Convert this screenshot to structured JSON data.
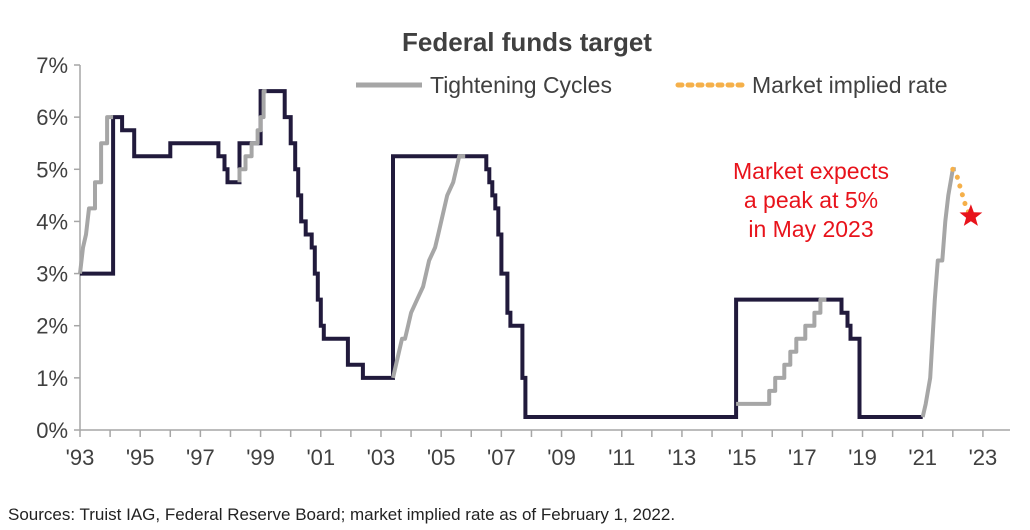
{
  "chart_data": {
    "type": "line",
    "title": "Federal funds target",
    "xlabel": "",
    "ylabel": "",
    "ylim": [
      0,
      7
    ],
    "xlim": [
      1993,
      2023.9
    ],
    "y_ticks": [
      "0%",
      "1%",
      "2%",
      "3%",
      "4%",
      "5%",
      "6%",
      "7%"
    ],
    "x_ticks": [
      {
        "value": 1993,
        "label": "'93"
      },
      {
        "value": 1995,
        "label": "'95"
      },
      {
        "value": 1997,
        "label": "'97"
      },
      {
        "value": 1999,
        "label": "'99"
      },
      {
        "value": 2001,
        "label": "'01"
      },
      {
        "value": 2003,
        "label": "'03"
      },
      {
        "value": 2005,
        "label": "'05"
      },
      {
        "value": 2007,
        "label": "'07"
      },
      {
        "value": 2009,
        "label": "'09"
      },
      {
        "value": 2011,
        "label": "'11"
      },
      {
        "value": 2013,
        "label": "'13"
      },
      {
        "value": 2015,
        "label": "'15"
      },
      {
        "value": 2017,
        "label": "'17"
      },
      {
        "value": 2019,
        "label": "'19"
      },
      {
        "value": 2021,
        "label": "'21"
      },
      {
        "value": 2023,
        "label": "'23"
      }
    ],
    "grid": false,
    "legend": {
      "position": "top-right",
      "entries": [
        {
          "label": "Tightening Cycles",
          "color": "#a6a6a6",
          "style": "solid"
        },
        {
          "label": "Market implied rate",
          "color": "#f5b04a",
          "style": "dotted"
        }
      ]
    },
    "series": [
      {
        "role": "base",
        "color": "#211a3c",
        "points": [
          [
            1993.0,
            3.0
          ],
          [
            1994.1,
            3.0
          ],
          [
            1994.1,
            6.0
          ],
          [
            1994.4,
            6.0
          ],
          [
            1994.4,
            5.75
          ],
          [
            1994.8,
            5.75
          ],
          [
            1994.8,
            5.25
          ],
          [
            1996.0,
            5.25
          ],
          [
            1996.0,
            5.5
          ],
          [
            1997.6,
            5.5
          ],
          [
            1997.6,
            5.25
          ],
          [
            1997.8,
            5.25
          ],
          [
            1997.8,
            5.0
          ],
          [
            1997.9,
            5.0
          ],
          [
            1997.9,
            4.75
          ],
          [
            1998.3,
            4.75
          ],
          [
            1998.3,
            5.5
          ],
          [
            1999.0,
            5.5
          ],
          [
            1999.0,
            6.5
          ],
          [
            1999.8,
            6.5
          ],
          [
            1999.8,
            6.0
          ],
          [
            2000.0,
            6.0
          ],
          [
            2000.0,
            5.5
          ],
          [
            2000.15,
            5.5
          ],
          [
            2000.15,
            5.0
          ],
          [
            2000.25,
            5.0
          ],
          [
            2000.25,
            4.5
          ],
          [
            2000.35,
            4.5
          ],
          [
            2000.35,
            4.0
          ],
          [
            2000.5,
            4.0
          ],
          [
            2000.5,
            3.75
          ],
          [
            2000.7,
            3.75
          ],
          [
            2000.7,
            3.5
          ],
          [
            2000.8,
            3.5
          ],
          [
            2000.8,
            3.0
          ],
          [
            2000.9,
            3.0
          ],
          [
            2000.9,
            2.5
          ],
          [
            2001.0,
            2.5
          ],
          [
            2001.0,
            2.0
          ],
          [
            2001.1,
            2.0
          ],
          [
            2001.1,
            1.75
          ],
          [
            2001.9,
            1.75
          ],
          [
            2001.9,
            1.25
          ],
          [
            2002.4,
            1.25
          ],
          [
            2002.4,
            1.0
          ],
          [
            2003.4,
            1.0
          ],
          [
            2003.4,
            5.25
          ],
          [
            2006.5,
            5.25
          ],
          [
            2006.5,
            5.0
          ],
          [
            2006.6,
            5.0
          ],
          [
            2006.6,
            4.75
          ],
          [
            2006.7,
            4.75
          ],
          [
            2006.7,
            4.5
          ],
          [
            2006.8,
            4.5
          ],
          [
            2006.8,
            4.25
          ],
          [
            2006.9,
            4.25
          ],
          [
            2006.9,
            3.75
          ],
          [
            2007.0,
            3.75
          ],
          [
            2007.0,
            3.0
          ],
          [
            2007.2,
            3.0
          ],
          [
            2007.2,
            2.25
          ],
          [
            2007.3,
            2.25
          ],
          [
            2007.3,
            2.0
          ],
          [
            2007.7,
            2.0
          ],
          [
            2007.7,
            1.0
          ],
          [
            2007.8,
            1.0
          ],
          [
            2007.8,
            0.25
          ],
          [
            2014.8,
            0.25
          ],
          [
            2014.8,
            2.5
          ],
          [
            2018.3,
            2.5
          ],
          [
            2018.3,
            2.25
          ],
          [
            2018.5,
            2.25
          ],
          [
            2018.5,
            2.0
          ],
          [
            2018.6,
            2.0
          ],
          [
            2018.6,
            1.75
          ],
          [
            2018.9,
            1.75
          ],
          [
            2018.9,
            0.25
          ],
          [
            2021.0,
            0.25
          ]
        ]
      },
      {
        "role": "tightening",
        "name": "Tightening Cycles",
        "color": "#a6a6a6",
        "segments": [
          [
            [
              1993.0,
              3.0
            ],
            [
              1993.1,
              3.5
            ],
            [
              1993.2,
              3.75
            ],
            [
              1993.3,
              4.25
            ],
            [
              1993.5,
              4.25
            ],
            [
              1993.5,
              4.75
            ],
            [
              1993.7,
              4.75
            ],
            [
              1993.7,
              5.5
            ],
            [
              1993.9,
              5.5
            ],
            [
              1993.9,
              6.0
            ],
            [
              1994.1,
              6.0
            ]
          ],
          [
            [
              1998.3,
              4.75
            ],
            [
              1998.3,
              5.0
            ],
            [
              1998.5,
              5.0
            ],
            [
              1998.5,
              5.25
            ],
            [
              1998.7,
              5.25
            ],
            [
              1998.7,
              5.5
            ],
            [
              1998.9,
              5.5
            ],
            [
              1998.9,
              5.75
            ],
            [
              1999.0,
              5.75
            ],
            [
              1999.0,
              6.0
            ],
            [
              1999.1,
              6.0
            ],
            [
              1999.1,
              6.5
            ],
            [
              1999.2,
              6.5
            ]
          ],
          [
            [
              2003.4,
              1.0
            ],
            [
              2003.5,
              1.25
            ],
            [
              2003.6,
              1.5
            ],
            [
              2003.7,
              1.75
            ],
            [
              2003.8,
              1.75
            ],
            [
              2003.9,
              2.0
            ],
            [
              2004.0,
              2.25
            ],
            [
              2004.2,
              2.5
            ],
            [
              2004.4,
              2.75
            ],
            [
              2004.5,
              3.0
            ],
            [
              2004.6,
              3.25
            ],
            [
              2004.8,
              3.5
            ],
            [
              2004.9,
              3.75
            ],
            [
              2005.0,
              4.0
            ],
            [
              2005.1,
              4.25
            ],
            [
              2005.2,
              4.5
            ],
            [
              2005.4,
              4.75
            ],
            [
              2005.5,
              5.0
            ],
            [
              2005.6,
              5.25
            ],
            [
              2005.8,
              5.25
            ]
          ],
          [
            [
              2014.8,
              0.5
            ],
            [
              2015.9,
              0.5
            ],
            [
              2015.9,
              0.75
            ],
            [
              2016.1,
              0.75
            ],
            [
              2016.1,
              1.0
            ],
            [
              2016.4,
              1.0
            ],
            [
              2016.4,
              1.25
            ],
            [
              2016.6,
              1.25
            ],
            [
              2016.6,
              1.5
            ],
            [
              2016.8,
              1.5
            ],
            [
              2016.8,
              1.75
            ],
            [
              2017.1,
              1.75
            ],
            [
              2017.1,
              2.0
            ],
            [
              2017.4,
              2.0
            ],
            [
              2017.4,
              2.25
            ],
            [
              2017.6,
              2.25
            ],
            [
              2017.6,
              2.5
            ],
            [
              2017.8,
              2.5
            ]
          ],
          [
            [
              2021.0,
              0.25
            ],
            [
              2021.1,
              0.5
            ],
            [
              2021.25,
              1.0
            ],
            [
              2021.4,
              2.5
            ],
            [
              2021.5,
              3.25
            ],
            [
              2021.65,
              3.25
            ],
            [
              2021.75,
              4.0
            ],
            [
              2021.85,
              4.5
            ],
            [
              2022.0,
              5.0
            ],
            [
              2022.1,
              5.0
            ]
          ]
        ]
      },
      {
        "role": "market",
        "name": "Market implied rate",
        "color": "#f5b04a",
        "style": "dotted",
        "points": [
          [
            2022.0,
            5.0
          ],
          [
            2022.15,
            4.85
          ],
          [
            2022.3,
            4.55
          ],
          [
            2022.45,
            4.25
          ],
          [
            2022.6,
            4.1
          ]
        ]
      }
    ],
    "marker": {
      "symbol": "star",
      "x": 2022.6,
      "y": 4.1,
      "color": "#e8131b"
    },
    "annotation": {
      "lines": [
        "Market expects",
        "a peak at 5%",
        "in May 2023"
      ],
      "color": "#e8131b"
    },
    "footer": "Sources: Truist IAG, Federal Reserve Board; market implied rate as of February 1, 2022."
  }
}
